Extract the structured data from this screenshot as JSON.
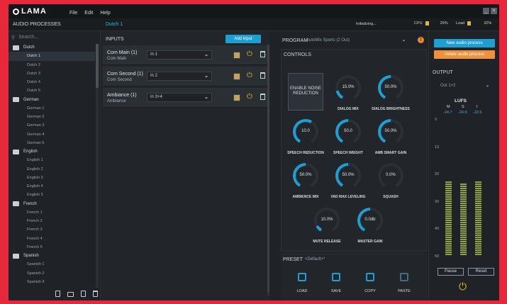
{
  "app": {
    "logo": "LAMA",
    "menus": [
      "File",
      "Edit",
      "Help"
    ]
  },
  "header": {
    "panel_title": "AUDIO PROCESSES",
    "breadcrumb": "Dutch 1",
    "status": "Initializing...",
    "cpu_label": "CPU",
    "cpu_value": "29%",
    "load_label": "Load",
    "load_value": "32%"
  },
  "sidebar": {
    "search_placeholder": "Search...",
    "groups": [
      {
        "name": "Dutch",
        "items": [
          "Dutch 1",
          "Dutch 2",
          "Dutch 3",
          "Dutch 4",
          "Dutch 5"
        ]
      },
      {
        "name": "German",
        "items": [
          "German 1",
          "German 2",
          "German 3",
          "German 4",
          "German 5"
        ]
      },
      {
        "name": "English",
        "items": [
          "English 1",
          "English 2",
          "English 3",
          "English 4",
          "English 5"
        ]
      },
      {
        "name": "French",
        "items": [
          "French 1",
          "French 2",
          "French 3",
          "French 4",
          "French 5"
        ]
      },
      {
        "name": "Spanish",
        "items": [
          "Spanish 1",
          "Spanish 2",
          "Spanish 3"
        ]
      }
    ],
    "selected": "Dutch 1"
  },
  "inputs": {
    "title": "INPUTS",
    "add_label": "Add input",
    "rows": [
      {
        "name": "Com Main  (1)",
        "sub": "Com Main",
        "channel": "In 1"
      },
      {
        "name": "Com Second  (1)",
        "sub": "Com Second",
        "channel": "In 2"
      },
      {
        "name": "Ambiance  (1)",
        "sub": "Ambiance",
        "channel": "In 3+4"
      }
    ]
  },
  "program": {
    "label": "PROGRAM",
    "value": "AutoMix Sports (2 Out)"
  },
  "controls": {
    "title": "CONTROLS",
    "enable_label": "ENABLE NOISE REDUCTION",
    "knobs": [
      {
        "label": "DIALOG MIX",
        "value": "15.0%",
        "level": 0.15
      },
      {
        "label": "DIALOG BRIGHTNESS",
        "value": "50.0%",
        "level": 0.5
      },
      {
        "label": "SPEECH REDUCTION",
        "value": "10.0",
        "level": 0.6
      },
      {
        "label": "SPEECH WEIGHT",
        "value": "50.0",
        "level": 0.5
      },
      {
        "label": "AMB SMART GAIN",
        "value": "50.0%",
        "level": 0.5
      },
      {
        "label": "AMBIENCE MIX",
        "value": "50.0%",
        "level": 0.5
      },
      {
        "label": "VAD MAX LEVELING",
        "value": "50.0%",
        "level": 0.5
      },
      {
        "label": "SQUASH",
        "value": "0.0%",
        "level": 0.0
      },
      {
        "label": "MUTE RELEASE",
        "value": "10.0%",
        "level": 0.1
      },
      {
        "label": "MASTER GAIN",
        "value": "0.0db",
        "level": 0.5
      }
    ]
  },
  "preset": {
    "label": "PRESET",
    "value": "<Default>*",
    "actions": [
      "LOAD",
      "SAVE",
      "COPY",
      "PASTE"
    ]
  },
  "right": {
    "new_label": "New audio process",
    "delete_label": "Delete audio process",
    "output_title": "OUTPUT",
    "output_select": "Out 1+2",
    "lufs_title": "LUFS",
    "cols": [
      "M",
      "S",
      "I"
    ],
    "values": [
      "-24.7",
      "-24.0",
      "-22.6"
    ],
    "scale": [
      "0",
      "10",
      "20",
      "30",
      "40",
      "50"
    ],
    "bar_levels": [
      0.8,
      0.78,
      0.8
    ],
    "pause_label": "Pause",
    "reset_label": "Reset"
  },
  "colors": {
    "accent": "#1c9fd3",
    "danger": "#f0913a",
    "frame": "#e8283a",
    "power": "#d9c03e"
  }
}
